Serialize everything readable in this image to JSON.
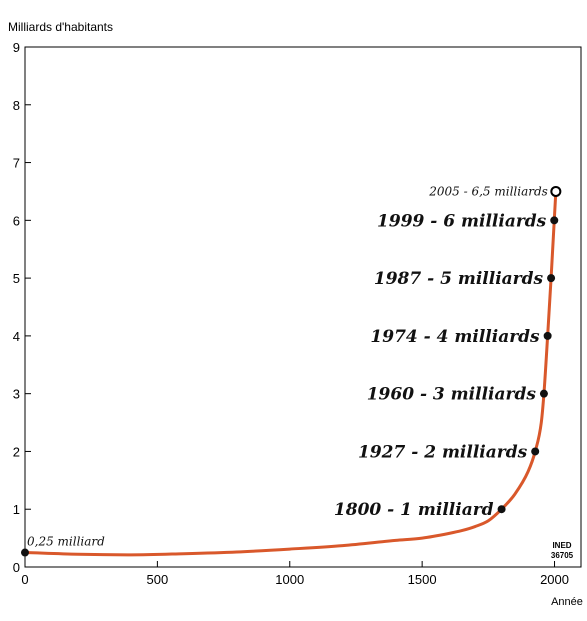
{
  "chart_data": {
    "type": "line",
    "ylabel": "Milliards d'habitants",
    "xlabel": "Année",
    "xlim": [
      0,
      2100
    ],
    "ylim": [
      0,
      9
    ],
    "xticks": [
      0,
      500,
      1000,
      1500,
      2000
    ],
    "yticks": [
      0,
      1,
      2,
      3,
      4,
      5,
      6,
      7,
      8,
      9
    ],
    "series": [
      {
        "x": [
          0,
          200,
          400,
          600,
          800,
          1000,
          1200,
          1400,
          1500,
          1600,
          1650,
          1700,
          1750,
          1800,
          1850,
          1900,
          1927,
          1950,
          1960,
          1974,
          1987,
          1999,
          2005
        ],
        "values": [
          0.25,
          0.22,
          0.21,
          0.23,
          0.26,
          0.31,
          0.37,
          0.46,
          0.5,
          0.58,
          0.63,
          0.7,
          0.8,
          1.0,
          1.26,
          1.65,
          2.0,
          2.5,
          3.0,
          4.0,
          5.0,
          6.0,
          6.5
        ],
        "color": "#d9582b"
      }
    ],
    "annotations": [
      {
        "x": 0,
        "y": 0.25,
        "text": "0,25 milliard",
        "style": "small"
      },
      {
        "x": 1800,
        "y": 1,
        "text": "1800 - 1 milliard",
        "style": "big"
      },
      {
        "x": 1927,
        "y": 2,
        "text": "1927 - 2 milliards",
        "style": "big"
      },
      {
        "x": 1960,
        "y": 3,
        "text": "1960 - 3 milliards",
        "style": "big"
      },
      {
        "x": 1974,
        "y": 4,
        "text": "1974 - 4 milliards",
        "style": "big"
      },
      {
        "x": 1987,
        "y": 5,
        "text": "1987 - 5 milliards",
        "style": "big"
      },
      {
        "x": 1999,
        "y": 6,
        "text": "1999 - 6 milliards",
        "style": "big"
      },
      {
        "x": 2005,
        "y": 6.5,
        "text": "2005 - 6,5 milliards",
        "style": "small",
        "open_marker": true
      }
    ],
    "grid": false
  },
  "source": {
    "line1": "INED",
    "line2": "36705"
  },
  "colors": {
    "curve": "#d9582b",
    "axis": "#000000"
  }
}
